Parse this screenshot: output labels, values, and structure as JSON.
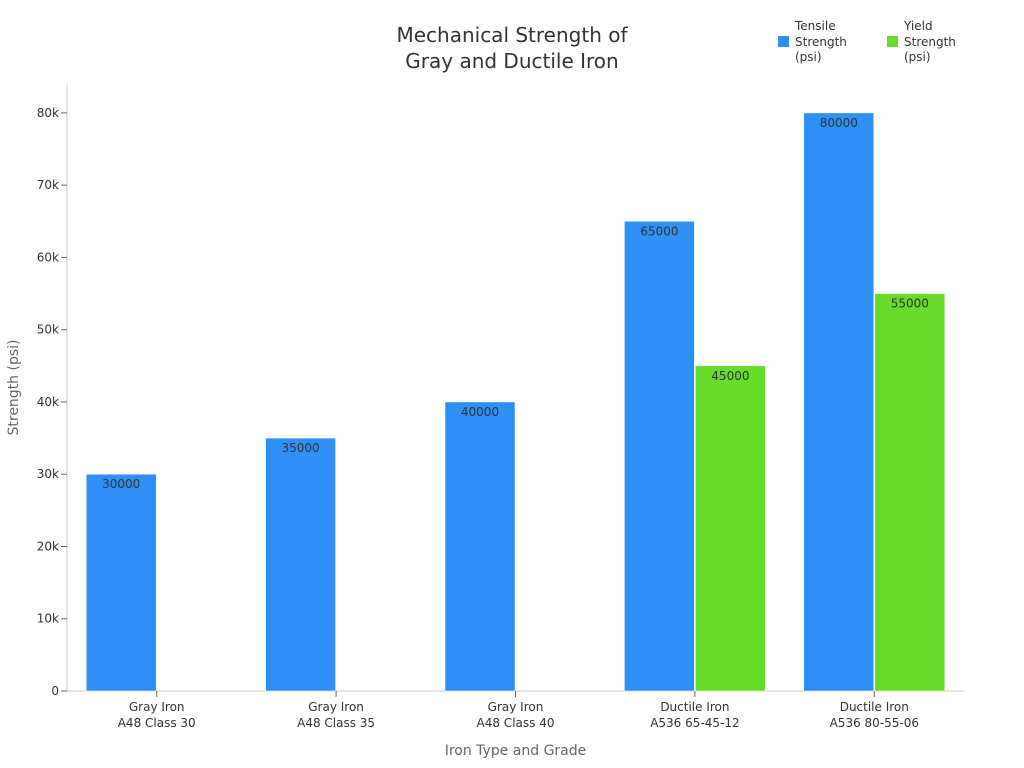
{
  "chart_data": {
    "type": "bar",
    "title_lines": [
      "Mechanical Strength of",
      "Gray and Ductile Iron"
    ],
    "xlabel": "Iron Type and Grade",
    "ylabel": "Strength (psi)",
    "categories": [
      [
        "Gray Iron",
        "A48 Class 30"
      ],
      [
        "Gray Iron",
        "A48 Class 35"
      ],
      [
        "Gray Iron",
        "A48 Class 40"
      ],
      [
        "Ductile Iron",
        "A536 65-45-12"
      ],
      [
        "Ductile Iron",
        "A536 80-55-06"
      ]
    ],
    "series": [
      {
        "name_lines": [
          "Tensile",
          "Strength",
          "(psi)"
        ],
        "color": "#2E90F5",
        "values": [
          30000,
          35000,
          40000,
          65000,
          80000
        ]
      },
      {
        "name_lines": [
          "Yield",
          "Strength",
          "(psi)"
        ],
        "color": "#66DB28",
        "values": [
          null,
          null,
          null,
          45000,
          55000
        ]
      }
    ],
    "ylim": [
      0,
      84000
    ],
    "yticks": [
      0,
      10000,
      20000,
      30000,
      40000,
      50000,
      60000,
      70000,
      80000
    ],
    "ytick_labels": [
      "0",
      "10k",
      "20k",
      "30k",
      "40k",
      "50k",
      "60k",
      "70k",
      "80k"
    ],
    "grid": false,
    "legend_position": "top-right",
    "data_labels_shown": true
  }
}
